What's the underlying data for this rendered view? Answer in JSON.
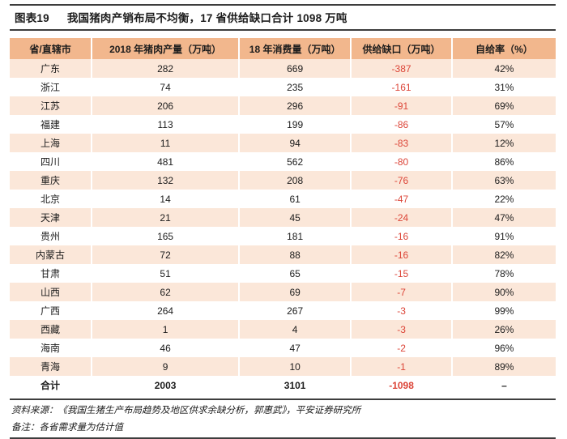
{
  "title": {
    "label": "图表19",
    "text": "我国猪肉产销布局不均衡，17 省供给缺口合计 1098 万吨"
  },
  "table": {
    "columns": [
      "省/直辖市",
      "2018 年猪肉产量（万吨）",
      "18 年消费量（万吨）",
      "供给缺口（万吨）",
      "自给率（%）"
    ],
    "column_keys": [
      "province",
      "production",
      "consumption",
      "gap",
      "self-sufficiency"
    ],
    "rows": [
      [
        "广东",
        "282",
        "669",
        "-387",
        "42%"
      ],
      [
        "浙江",
        "74",
        "235",
        "-161",
        "31%"
      ],
      [
        "江苏",
        "206",
        "296",
        "-91",
        "69%"
      ],
      [
        "福建",
        "113",
        "199",
        "-86",
        "57%"
      ],
      [
        "上海",
        "11",
        "94",
        "-83",
        "12%"
      ],
      [
        "四川",
        "481",
        "562",
        "-80",
        "86%"
      ],
      [
        "重庆",
        "132",
        "208",
        "-76",
        "63%"
      ],
      [
        "北京",
        "14",
        "61",
        "-47",
        "22%"
      ],
      [
        "天津",
        "21",
        "45",
        "-24",
        "47%"
      ],
      [
        "贵州",
        "165",
        "181",
        "-16",
        "91%"
      ],
      [
        "内蒙古",
        "72",
        "88",
        "-16",
        "82%"
      ],
      [
        "甘肃",
        "51",
        "65",
        "-15",
        "78%"
      ],
      [
        "山西",
        "62",
        "69",
        "-7",
        "90%"
      ],
      [
        "广西",
        "264",
        "267",
        "-3",
        "99%"
      ],
      [
        "西藏",
        "1",
        "4",
        "-3",
        "26%"
      ],
      [
        "海南",
        "46",
        "47",
        "-2",
        "96%"
      ],
      [
        "青海",
        "9",
        "10",
        "-1",
        "89%"
      ]
    ],
    "total_row": [
      "合计",
      "2003",
      "3101",
      "-1098",
      "–"
    ]
  },
  "footer": {
    "source": "资料来源：《我国生猪生产布局趋势及地区供求余缺分析，郭惠武》，平安证券研究所",
    "note": "备注：各省需求量为估计值"
  },
  "colors": {
    "header_bg": "#F2B78D",
    "row_alt_bg": "#FBE7D9",
    "negative": "#DC4538",
    "rule": "#3D3D3D",
    "text": "#1C1C1C"
  }
}
